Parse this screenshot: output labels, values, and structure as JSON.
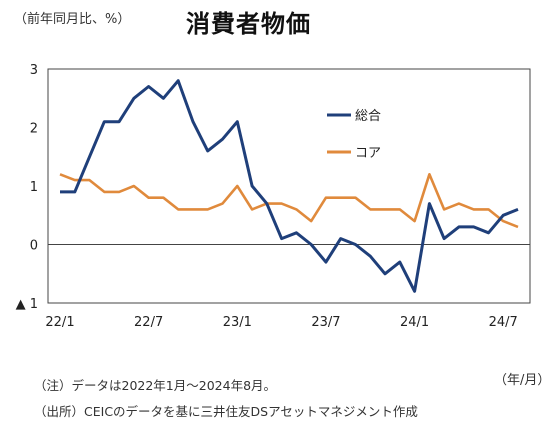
{
  "header": {
    "unit": "（前年同月比、%）",
    "title": "消費者物価"
  },
  "notes": {
    "note": "（注）データは2022年1月～2024年8月。",
    "source": "（出所）CEICのデータを基に三井住友DSアセットマネジメント作成",
    "x_unit": "（年/月）"
  },
  "chart_data": {
    "type": "line",
    "title": "消費者物価",
    "ylabel": "（前年同月比、%）",
    "xlabel": "（年/月）",
    "ylim": [
      -1,
      3
    ],
    "yticks": [
      3,
      2,
      1,
      0,
      -1
    ],
    "ytick_labels": [
      "3",
      "2",
      "1",
      "0",
      "▲ 1"
    ],
    "x_tick_labels": [
      "22/1",
      "22/7",
      "23/1",
      "23/7",
      "24/1",
      "24/7"
    ],
    "x_tick_index": [
      0,
      6,
      12,
      18,
      24,
      30
    ],
    "x": [
      "22/1",
      "22/2",
      "22/3",
      "22/4",
      "22/5",
      "22/6",
      "22/7",
      "22/8",
      "22/9",
      "22/10",
      "22/11",
      "22/12",
      "23/1",
      "23/2",
      "23/3",
      "23/4",
      "23/5",
      "23/6",
      "23/7",
      "23/8",
      "23/9",
      "23/10",
      "23/11",
      "23/12",
      "24/1",
      "24/2",
      "24/3",
      "24/4",
      "24/5",
      "24/6",
      "24/7",
      "24/8"
    ],
    "legend": "upper-right",
    "grid": false,
    "series": [
      {
        "name": "総合",
        "color": "#1f3f7a",
        "values": [
          0.9,
          0.9,
          1.5,
          2.1,
          2.1,
          2.5,
          2.7,
          2.5,
          2.8,
          2.1,
          1.6,
          1.8,
          2.1,
          1.0,
          0.7,
          0.1,
          0.2,
          0.0,
          -0.3,
          0.1,
          0.0,
          -0.2,
          -0.5,
          -0.3,
          -0.8,
          0.7,
          0.1,
          0.3,
          0.3,
          0.2,
          0.5,
          0.6
        ]
      },
      {
        "name": "コア",
        "color": "#e08a3c",
        "values": [
          1.2,
          1.1,
          1.1,
          0.9,
          0.9,
          1.0,
          0.8,
          0.8,
          0.6,
          0.6,
          0.6,
          0.7,
          1.0,
          0.6,
          0.7,
          0.7,
          0.6,
          0.4,
          0.8,
          0.8,
          0.8,
          0.6,
          0.6,
          0.6,
          0.4,
          1.2,
          0.6,
          0.7,
          0.6,
          0.6,
          0.4,
          0.3
        ]
      }
    ]
  }
}
